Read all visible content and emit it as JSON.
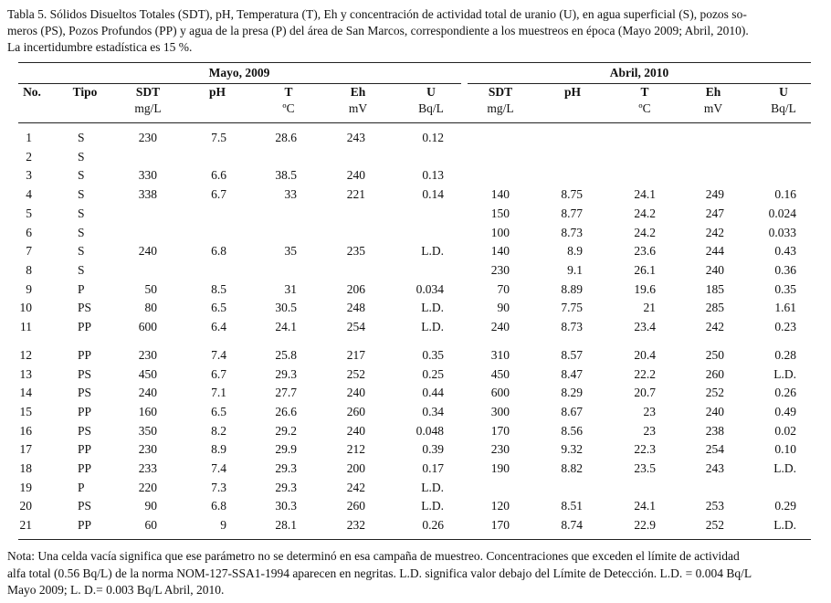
{
  "caption": {
    "lines": [
      "Tabla 5. Sólidos Disueltos Totales (SDT), pH, Temperatura (T), Eh y concentración de actividad total de uranio (U), en agua superficial (S), pozos so-",
      "meros (PS), Pozos Profundos (PP) y agua de la presa (P) del área de San Marcos, correspondiente a los muestreos en época (Mayo 2009; Abril, 2010).",
      "La incertidumbre estadística es 15 %."
    ]
  },
  "table": {
    "groups": [
      "Mayo, 2009",
      "Abril, 2010"
    ],
    "columns": [
      [
        "No."
      ],
      [
        "Tipo"
      ],
      [
        "SDT",
        "mg/L"
      ],
      [
        "pH"
      ],
      [
        "T",
        "ºC"
      ],
      [
        "Eh",
        "mV"
      ],
      [
        "U",
        "Bq/L"
      ],
      [
        "SDT",
        "mg/L"
      ],
      [
        "pH"
      ],
      [
        "T",
        "ºC"
      ],
      [
        "Eh",
        "mV"
      ],
      [
        "U",
        "Bq/L"
      ]
    ],
    "rows": [
      [
        "1",
        "S",
        "230",
        "7.5",
        "28.6",
        "243",
        "0.12",
        null,
        null,
        null,
        null,
        null
      ],
      [
        "2",
        "S",
        null,
        null,
        null,
        null,
        null,
        null,
        null,
        null,
        null,
        null
      ],
      [
        "3",
        "S",
        "330",
        "6.6",
        "38.5",
        "240",
        "0.13",
        null,
        null,
        null,
        null,
        null
      ],
      [
        "4",
        "S",
        "338",
        "6.7",
        "33",
        "221",
        "0.14",
        "140",
        "8.75",
        "24.1",
        "249",
        "0.16"
      ],
      [
        "5",
        "S",
        null,
        null,
        null,
        null,
        null,
        "150",
        "8.77",
        "24.2",
        "247",
        "0.024"
      ],
      [
        "6",
        "S",
        null,
        null,
        null,
        null,
        null,
        "100",
        "8.73",
        "24.2",
        "242",
        "0.033"
      ],
      [
        "7",
        "S",
        "240",
        "6.8",
        "35",
        "235",
        "L.D.",
        "140",
        "8.9",
        "23.6",
        "244",
        "0.43"
      ],
      [
        "8",
        "S",
        null,
        null,
        null,
        null,
        null,
        "230",
        "9.1",
        "26.1",
        "240",
        "0.36"
      ],
      [
        "9",
        "P",
        "50",
        "8.5",
        "31",
        "206",
        "0.034",
        "70",
        "8.89",
        "19.6",
        "185",
        "0.35"
      ],
      [
        "10",
        "PS",
        "80",
        "6.5",
        "30.5",
        "248",
        "L.D.",
        "90",
        "7.75",
        "21",
        "285",
        "1.61"
      ],
      [
        "11",
        "PP",
        "600",
        "6.4",
        "24.1",
        "254",
        "L.D.",
        "240",
        "8.73",
        "23.4",
        "242",
        "0.23"
      ],
      [
        "12",
        "PP",
        "230",
        "7.4",
        "25.8",
        "217",
        "0.35",
        "310",
        "8.57",
        "20.4",
        "250",
        "0.28"
      ],
      [
        "13",
        "PS",
        "450",
        "6.7",
        "29.3",
        "252",
        "0.25",
        "450",
        "8.47",
        "22.2",
        "260",
        "L.D."
      ],
      [
        "14",
        "PS",
        "240",
        "7.1",
        "27.7",
        "240",
        "0.44",
        "600",
        "8.29",
        "20.7",
        "252",
        "0.26"
      ],
      [
        "15",
        "PP",
        "160",
        "6.5",
        "26.6",
        "260",
        "0.34",
        "300",
        "8.67",
        "23",
        "240",
        "0.49"
      ],
      [
        "16",
        "PS",
        "350",
        "8.2",
        "29.2",
        "240",
        "0.048",
        "170",
        "8.56",
        "23",
        "238",
        "0.02"
      ],
      [
        "17",
        "PP",
        "230",
        "8.9",
        "29.9",
        "212",
        "0.39",
        "230",
        "9.32",
        "22.3",
        "254",
        "0.10"
      ],
      [
        "18",
        "PP",
        "233",
        "7.4",
        "29.3",
        "200",
        "0.17",
        "190",
        "8.82",
        "23.5",
        "243",
        "L.D."
      ],
      [
        "19",
        "P",
        "220",
        "7.3",
        "29.3",
        "242",
        "L.D.",
        null,
        null,
        null,
        null,
        null
      ],
      [
        "20",
        "PS",
        "90",
        "6.8",
        "30.3",
        "260",
        "L.D.",
        "120",
        "8.51",
        "24.1",
        "253",
        "0.29"
      ],
      [
        "21",
        "PP",
        "60",
        "9",
        "28.1",
        "232",
        "0.26",
        "170",
        "8.74",
        "22.9",
        "252",
        "L.D."
      ]
    ]
  },
  "note": {
    "lines": [
      "Nota: Una celda vacía significa que ese parámetro no se determinó en esa campaña de muestreo. Concentraciones que exceden el límite de actividad",
      "alfa total (0.56 Bq/L) de la norma NOM-127-SSA1-1994 aparecen en negritas. L.D. significa valor debajo del Límite de Detección. L.D. =  0.004 Bq/L",
      "Mayo 2009; L. D.= 0.003 Bq/L Abril, 2010."
    ]
  }
}
